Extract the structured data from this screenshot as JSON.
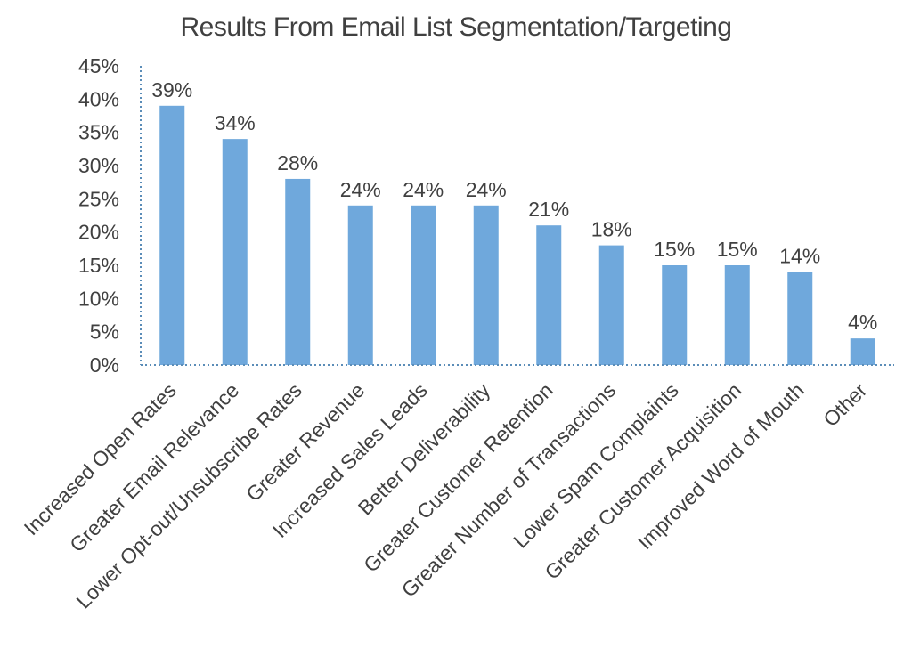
{
  "chart_data": {
    "type": "bar",
    "title": "Results From Email List Segmentation/Targeting",
    "categories": [
      "Increased Open Rates",
      "Greater Email Relevance",
      "Lower Opt-out/Unsubscribe Rates",
      "Greater Revenue",
      "Increased Sales Leads",
      "Better Deliverability",
      "Greater Customer Retention",
      "Greater Number of Transactions",
      "Lower Spam Complaints",
      "Greater Customer Acquisition",
      "Improved Word of Mouth",
      "Other"
    ],
    "values": [
      39,
      34,
      28,
      24,
      24,
      24,
      21,
      18,
      15,
      15,
      14,
      4
    ],
    "data_labels": [
      "39%",
      "34%",
      "28%",
      "24%",
      "24%",
      "24%",
      "21%",
      "18%",
      "15%",
      "15%",
      "14%",
      "4%"
    ],
    "yticks": [
      0,
      5,
      10,
      15,
      20,
      25,
      30,
      35,
      40,
      45
    ],
    "ytick_labels": [
      "0%",
      "5%",
      "10%",
      "15%",
      "20%",
      "25%",
      "30%",
      "35%",
      "40%",
      "45%"
    ],
    "ylim": [
      0,
      45
    ],
    "xlabel": "",
    "ylabel": "",
    "grid": false,
    "legend": "none",
    "bar_color": "#6FA8DC",
    "axis_color": "#5B8DB8"
  }
}
